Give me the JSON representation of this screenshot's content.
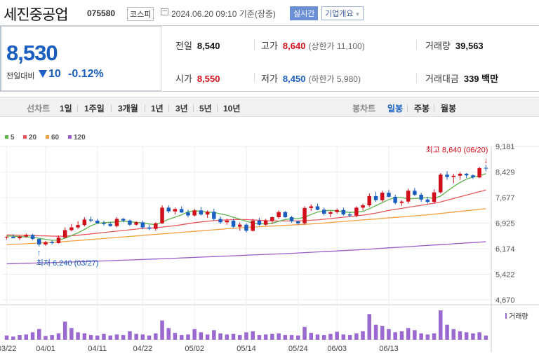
{
  "header": {
    "name": "세진중공업",
    "code": "075580",
    "market": "코스피",
    "time": "2024.06.20 09:10 기준(장중)",
    "realtime_label": "실시간",
    "info_label": "기업개요"
  },
  "summary": {
    "price": "8,530",
    "prev_label": "전일대비",
    "change": "10",
    "change_pct": "-0.12%",
    "prev_close_label": "전일",
    "prev_close": "8,540",
    "open_label": "시가",
    "open": "8,550",
    "high_label": "고가",
    "high": "8,640",
    "upper_label": "(상한가 11,100)",
    "low_label": "저가",
    "low": "8,450",
    "lower_label": "(하한가 5,980)",
    "volume_label": "거래량",
    "volume": "39,563",
    "amount_label": "거래대금",
    "amount": "339 백만"
  },
  "tabs": {
    "line_label": "선차트",
    "line_items": [
      "1일",
      "1주일",
      "3개월",
      "1년",
      "3년",
      "5년",
      "10년"
    ],
    "candle_label": "봉차트",
    "candle_items": [
      "일봉",
      "주봉",
      "월봉"
    ],
    "active_candle": "일봉"
  },
  "colors": {
    "up": "#d10f1b",
    "down": "#1a5fc0",
    "ma5": "#5db44a",
    "ma20": "#e8585a",
    "ma60": "#f5a040",
    "ma120": "#9a5fc8",
    "volume": "#9a6ad0"
  },
  "chart_data": {
    "type": "candlestick",
    "legend": [
      "5",
      "20",
      "60",
      "120"
    ],
    "yticks": [
      "9,181",
      "8,429",
      "7,677",
      "6,925",
      "6,174",
      "5,422",
      "4,670"
    ],
    "ylim": [
      4670,
      9181
    ],
    "xticks": [
      {
        "label": "03/22",
        "index": 0
      },
      {
        "label": "04/01",
        "index": 6
      },
      {
        "label": "04/11",
        "index": 14
      },
      {
        "label": "04/22",
        "index": 21
      },
      {
        "label": "05/02",
        "index": 29
      },
      {
        "label": "05/14",
        "index": 37
      },
      {
        "label": "05/24",
        "index": 45
      },
      {
        "label": "06/03",
        "index": 51
      },
      {
        "label": "06/13",
        "index": 59
      }
    ],
    "volume_label": "거래량",
    "max_annotation": "최고 8,640 (06/20)",
    "min_annotation": "최저 6,240 (03/27)",
    "candles": [
      [
        6500,
        6550,
        6450,
        6520
      ],
      [
        6520,
        6600,
        6480,
        6480
      ],
      [
        6480,
        6550,
        6430,
        6530
      ],
      [
        6530,
        6620,
        6500,
        6580
      ],
      [
        6580,
        6610,
        6430,
        6460
      ],
      [
        6460,
        6480,
        6240,
        6300
      ],
      [
        6300,
        6400,
        6260,
        6370
      ],
      [
        6370,
        6420,
        6300,
        6340
      ],
      [
        6340,
        6560,
        6320,
        6500
      ],
      [
        6500,
        6800,
        6480,
        6720
      ],
      [
        6720,
        6900,
        6680,
        6800
      ],
      [
        6800,
        6980,
        6760,
        6870
      ],
      [
        6870,
        7100,
        6830,
        7030
      ],
      [
        7030,
        7120,
        6950,
        7000
      ],
      [
        7000,
        7050,
        6900,
        6930
      ],
      [
        6930,
        7000,
        6850,
        6900
      ],
      [
        6900,
        6960,
        6820,
        6840
      ],
      [
        6840,
        7100,
        6800,
        7050
      ],
      [
        7050,
        7080,
        6950,
        7000
      ],
      [
        7000,
        7030,
        6850,
        6880
      ],
      [
        6880,
        6980,
        6850,
        6950
      ],
      [
        6950,
        7000,
        6750,
        6800
      ],
      [
        6800,
        6880,
        6720,
        6760
      ],
      [
        6760,
        6950,
        6700,
        6920
      ],
      [
        6920,
        7450,
        6900,
        7380
      ],
      [
        7380,
        7450,
        7220,
        7270
      ],
      [
        7270,
        7380,
        7180,
        7340
      ],
      [
        7340,
        7420,
        7230,
        7240
      ],
      [
        7240,
        7320,
        7100,
        7150
      ],
      [
        7150,
        7350,
        7120,
        7300
      ],
      [
        7300,
        7400,
        7150,
        7180
      ],
      [
        7180,
        7300,
        7080,
        7260
      ],
      [
        7260,
        7350,
        7000,
        7050
      ],
      [
        7050,
        7120,
        6900,
        6950
      ],
      [
        6950,
        7060,
        6880,
        7000
      ],
      [
        7000,
        7050,
        6780,
        6820
      ],
      [
        6820,
        6950,
        6700,
        6880
      ],
      [
        6880,
        6920,
        6650,
        6700
      ],
      [
        6700,
        7050,
        6680,
        7000
      ],
      [
        7000,
        7080,
        6850,
        6880
      ],
      [
        6880,
        7050,
        6850,
        7000
      ],
      [
        7000,
        7120,
        6900,
        7100
      ],
      [
        7100,
        7300,
        7050,
        7250
      ],
      [
        7250,
        7280,
        7080,
        7100
      ],
      [
        7100,
        7140,
        6940,
        6980
      ],
      [
        6980,
        7000,
        6880,
        6920
      ],
      [
        6920,
        7420,
        6880,
        7370
      ],
      [
        7370,
        7480,
        7280,
        7420
      ],
      [
        7420,
        7500,
        7300,
        7320
      ],
      [
        7320,
        7380,
        7150,
        7200
      ],
      [
        7200,
        7280,
        7100,
        7250
      ],
      [
        7250,
        7360,
        7200,
        7310
      ],
      [
        7310,
        7380,
        7150,
        7180
      ],
      [
        7180,
        7250,
        7100,
        7150
      ],
      [
        7150,
        7420,
        7100,
        7380
      ],
      [
        7380,
        7500,
        7300,
        7450
      ],
      [
        7450,
        7800,
        7400,
        7720
      ],
      [
        7720,
        7850,
        7550,
        7600
      ],
      [
        7600,
        7880,
        7550,
        7820
      ],
      [
        7820,
        7900,
        7680,
        7700
      ],
      [
        7700,
        7760,
        7480,
        7520
      ],
      [
        7520,
        7600,
        7430,
        7560
      ],
      [
        7560,
        7940,
        7500,
        7880
      ],
      [
        7880,
        7960,
        7720,
        7760
      ],
      [
        7760,
        7820,
        7550,
        7620
      ],
      [
        7620,
        7700,
        7500,
        7550
      ],
      [
        7550,
        7920,
        7500,
        7830
      ],
      [
        7830,
        8400,
        7800,
        8350
      ],
      [
        8350,
        8450,
        8200,
        8280
      ],
      [
        8280,
        8380,
        8100,
        8320
      ],
      [
        8320,
        8430,
        8200,
        8380
      ],
      [
        8380,
        8400,
        8250,
        8330
      ],
      [
        8330,
        8360,
        8220,
        8270
      ],
      [
        8270,
        8580,
        8250,
        8540
      ],
      [
        8550,
        8640,
        8450,
        8530
      ]
    ],
    "volumes": [
      8,
      6,
      9,
      10,
      14,
      20,
      7,
      9,
      12,
      34,
      22,
      14,
      12,
      9,
      8,
      11,
      8,
      10,
      9,
      16,
      11,
      10,
      8,
      12,
      36,
      22,
      13,
      9,
      10,
      20,
      14,
      10,
      18,
      12,
      10,
      11,
      9,
      14,
      16,
      9,
      10,
      11,
      12,
      9,
      9,
      8,
      24,
      13,
      10,
      9,
      11,
      15,
      10,
      9,
      12,
      16,
      48,
      28,
      26,
      20,
      14,
      16,
      22,
      18,
      12,
      10,
      12,
      55,
      28,
      20,
      16,
      14,
      12,
      14,
      8
    ],
    "ma5": [
      6550,
      6540,
      6530,
      6520,
      6510,
      6480,
      6450,
      6420,
      6430,
      6480,
      6560,
      6640,
      6740,
      6850,
      6920,
      6940,
      6950,
      6960,
      6980,
      6970,
      6950,
      6930,
      6900,
      6880,
      6950,
      7040,
      7100,
      7170,
      7260,
      7290,
      7270,
      7250,
      7240,
      7200,
      7160,
      7100,
      7040,
      6980,
      6930,
      6910,
      6900,
      6920,
      6980,
      7030,
      7060,
      7060,
      7100,
      7180,
      7250,
      7290,
      7300,
      7290,
      7260,
      7240,
      7250,
      7270,
      7350,
      7440,
      7530,
      7620,
      7680,
      7680,
      7640,
      7650,
      7660,
      7680,
      7650,
      7720,
      7860,
      8000,
      8120,
      8220,
      8280,
      8320,
      8380
    ],
    "ma20": [
      6580,
      6575,
      6570,
      6565,
      6560,
      6555,
      6550,
      6545,
      6540,
      6545,
      6555,
      6570,
      6590,
      6610,
      6630,
      6650,
      6670,
      6690,
      6710,
      6730,
      6750,
      6770,
      6780,
      6790,
      6810,
      6830,
      6850,
      6880,
      6910,
      6940,
      6960,
      6980,
      7000,
      7010,
      7020,
      7030,
      7030,
      7030,
      7020,
      7010,
      7000,
      6990,
      6990,
      6990,
      6990,
      6990,
      7000,
      7010,
      7020,
      7040,
      7060,
      7080,
      7100,
      7120,
      7140,
      7160,
      7190,
      7220,
      7260,
      7300,
      7330,
      7360,
      7390,
      7420,
      7450,
      7480,
      7510,
      7550,
      7600,
      7650,
      7700,
      7750,
      7800,
      7850,
      7900
    ],
    "ma60": [
      6300,
      6305,
      6310,
      6320,
      6330,
      6340,
      6350,
      6360,
      6370,
      6385,
      6400,
      6415,
      6430,
      6445,
      6460,
      6475,
      6490,
      6505,
      6520,
      6535,
      6550,
      6565,
      6580,
      6595,
      6610,
      6625,
      6640,
      6655,
      6670,
      6685,
      6700,
      6715,
      6730,
      6745,
      6760,
      6775,
      6790,
      6800,
      6810,
      6820,
      6830,
      6840,
      6850,
      6860,
      6870,
      6880,
      6890,
      6900,
      6915,
      6930,
      6945,
      6960,
      6975,
      6990,
      7005,
      7020,
      7035,
      7050,
      7065,
      7080,
      7095,
      7110,
      7125,
      7140,
      7155,
      7170,
      7190,
      7210,
      7230,
      7250,
      7270,
      7290,
      7310,
      7330,
      7350
    ],
    "ma120": [
      5730,
      5735,
      5740,
      5745,
      5750,
      5755,
      5760,
      5766,
      5772,
      5778,
      5784,
      5790,
      5796,
      5802,
      5808,
      5815,
      5822,
      5829,
      5836,
      5843,
      5850,
      5857,
      5864,
      5871,
      5878,
      5886,
      5894,
      5902,
      5910,
      5918,
      5926,
      5934,
      5942,
      5950,
      5958,
      5966,
      5974,
      5982,
      5990,
      5998,
      6006,
      6014,
      6022,
      6030,
      6038,
      6048,
      6058,
      6068,
      6078,
      6088,
      6098,
      6108,
      6118,
      6128,
      6138,
      6150,
      6162,
      6174,
      6186,
      6198,
      6210,
      6222,
      6234,
      6246,
      6258,
      6270,
      6282,
      6294,
      6306,
      6318,
      6330,
      6342,
      6354,
      6366,
      6380
    ]
  }
}
